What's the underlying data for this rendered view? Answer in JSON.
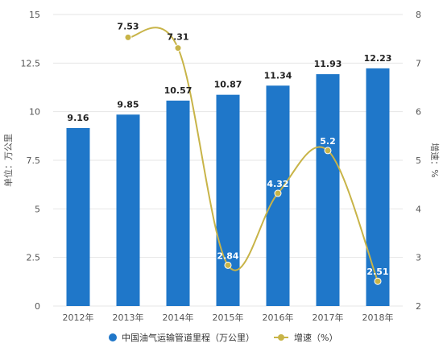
{
  "chart_data": {
    "type": "bar",
    "categories": [
      "2012年",
      "2013年",
      "2014年",
      "2015年",
      "2016年",
      "2017年",
      "2018年"
    ],
    "series": [
      {
        "name": "中国油气运输管道里程（万公里）",
        "type": "bar",
        "axis": "left",
        "color": "#1f77c9",
        "values": [
          9.16,
          9.85,
          10.57,
          10.87,
          11.34,
          11.93,
          12.23
        ],
        "labels": [
          "9.16",
          "9.85",
          "10.57",
          "10.87",
          "11.34",
          "11.93",
          "12.23"
        ]
      },
      {
        "name": "增速（%）",
        "type": "line",
        "axis": "right",
        "color": "#c8b448",
        "smooth": true,
        "values": [
          null,
          7.53,
          7.31,
          2.84,
          4.32,
          5.2,
          2.51
        ],
        "labels": [
          "",
          "7.53",
          "7.31",
          "2.84",
          "4.32",
          "5.2",
          "2.51"
        ]
      }
    ],
    "y_left": {
      "label": "单位：万公里",
      "ylim": [
        0,
        15
      ],
      "ticks": [
        "0",
        "2.5",
        "5",
        "7.5",
        "10",
        "12.5",
        "15"
      ]
    },
    "y_right": {
      "label": "增速：%",
      "ylim": [
        2,
        8
      ],
      "ticks": [
        "2",
        "3",
        "4",
        "5",
        "6",
        "7",
        "8"
      ]
    },
    "grid": true,
    "legend_position": "bottom-center"
  }
}
